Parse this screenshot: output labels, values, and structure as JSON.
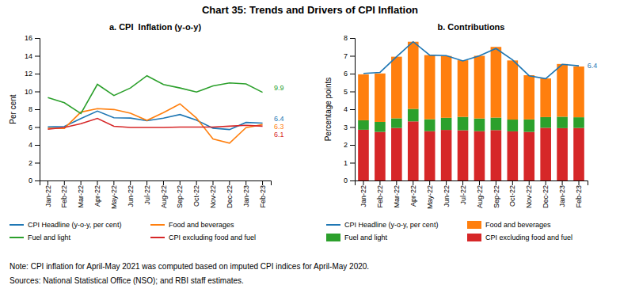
{
  "title": "Chart 35: Trends and Drivers of CPI Inflation",
  "annotations": [
    "Note: CPI inflation for April-May 2021 was computed based on imputed CPI indices for April-May 2020.",
    "Sources: National Statistical Office (NSO); and RBI staff estimates."
  ],
  "chart_data": [
    {
      "type": "line",
      "title": "a. CPI  Inflation (y-o-y)",
      "y_label": "Per cent",
      "categories": [
        "Jan-22",
        "Feb-22",
        "Mar-22",
        "Apr-22",
        "May-22",
        "Jun-22",
        "Jul-22",
        "Aug-22",
        "Sep-22",
        "Oct-22",
        "Nov-22",
        "Dec-22",
        "Jan-23",
        "Feb-23"
      ],
      "series": [
        {
          "name": "CPI Headline (y-o-y, per cent)",
          "values": [
            6.01,
            6.07,
            6.95,
            7.79,
            7.04,
            7.01,
            6.71,
            7.0,
            7.41,
            6.77,
            5.88,
            5.72,
            6.52,
            6.44
          ],
          "value_labels": [
            null,
            null,
            null,
            null,
            null,
            null,
            null,
            null,
            null,
            null,
            null,
            null,
            null,
            "6.4"
          ]
        },
        {
          "name": "Food and beverages",
          "values": [
            5.87,
            5.85,
            7.68,
            8.06,
            7.97,
            7.56,
            6.75,
            7.62,
            8.6,
            7.01,
            4.67,
            4.19,
            5.94,
            6.28
          ],
          "value_labels": [
            null,
            null,
            null,
            null,
            null,
            null,
            null,
            null,
            null,
            null,
            null,
            null,
            null,
            "6.3"
          ]
        },
        {
          "name": "Fuel and light",
          "values": [
            9.32,
            8.73,
            7.52,
            10.8,
            9.54,
            10.39,
            11.76,
            10.78,
            10.39,
            9.93,
            10.62,
            10.96,
            10.84,
            9.9
          ],
          "value_labels": [
            null,
            null,
            null,
            null,
            null,
            null,
            null,
            null,
            null,
            null,
            null,
            null,
            null,
            "9.9"
          ]
        },
        {
          "name": "CPI excluding food and fuel",
          "values": [
            5.75,
            5.96,
            6.37,
            6.97,
            6.09,
            5.96,
            5.96,
            5.96,
            6.0,
            6.0,
            6.0,
            6.1,
            6.2,
            6.1
          ],
          "value_labels": [
            null,
            null,
            null,
            null,
            null,
            null,
            null,
            null,
            null,
            null,
            null,
            null,
            null,
            "6.1"
          ]
        }
      ],
      "ylim": [
        0,
        16
      ],
      "yticks": [
        0,
        2,
        4,
        6,
        8,
        10,
        12,
        14,
        16
      ],
      "grid": false,
      "legend": "bottom"
    },
    {
      "type": "bar",
      "stacked": true,
      "title": "b. Contributions",
      "y_label": "Percentage points",
      "categories": [
        "Jan-22",
        "Feb-22",
        "Mar-22",
        "Apr-22",
        "May-22",
        "Jun-22",
        "Jul-22",
        "Aug-22",
        "Sep-22",
        "Oct-22",
        "Nov-22",
        "Dec-22",
        "Jan-23",
        "Feb-23"
      ],
      "series": [
        {
          "name": "CPI excluding food and fuel",
          "type": "bar",
          "values": [
            2.85,
            2.73,
            2.95,
            3.32,
            2.77,
            2.84,
            2.82,
            2.77,
            2.83,
            2.76,
            2.73,
            2.96,
            2.94,
            2.95
          ]
        },
        {
          "name": "Fuel and light",
          "type": "bar",
          "values": [
            0.53,
            0.56,
            0.54,
            0.7,
            0.67,
            0.68,
            0.75,
            0.71,
            0.7,
            0.66,
            0.7,
            0.6,
            0.64,
            0.6
          ]
        },
        {
          "name": "Food and beverages",
          "type": "bar",
          "values": [
            2.58,
            2.72,
            3.46,
            3.77,
            3.6,
            3.47,
            3.18,
            3.52,
            3.97,
            3.32,
            2.48,
            2.17,
            2.96,
            2.85
          ]
        },
        {
          "name": "CPI Headline (y-o-y, per cent)",
          "type": "line",
          "values": [
            6.01,
            6.07,
            6.95,
            7.79,
            7.04,
            7.01,
            6.71,
            7.0,
            7.41,
            6.77,
            5.88,
            5.72,
            6.52,
            6.44
          ],
          "value_labels": [
            null,
            null,
            null,
            null,
            null,
            null,
            null,
            null,
            null,
            null,
            null,
            null,
            null,
            "6.4"
          ]
        }
      ],
      "ylim": [
        0,
        8
      ],
      "yticks": [
        0,
        1,
        2,
        3,
        4,
        5,
        6,
        7,
        8
      ],
      "grid": false,
      "legend": "bottom"
    }
  ]
}
